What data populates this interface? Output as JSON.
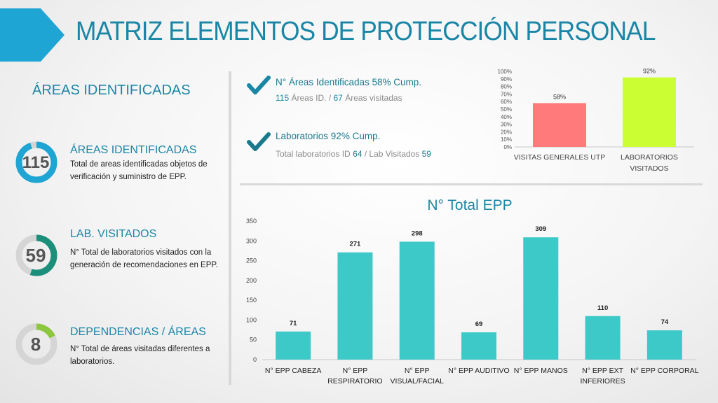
{
  "header": {
    "title": "MATRIZ ELEMENTOS DE PROTECCIÓN PERSONAL"
  },
  "colors": {
    "brand_blue": "#1a86a6",
    "teal": "#3ec9c9",
    "green": "#8dc63f",
    "check": "#1a7a8c",
    "bar_red": "#ff7b7b",
    "bar_lime": "#ccff33"
  },
  "left": {
    "section_title": "ÁREAS IDENTIFICADAS",
    "kpis": [
      {
        "number": "115",
        "title": "ÁREAS IDENTIFICADAS",
        "description": "Total de areas identificadas objetos de verificación y suministro de EPP.",
        "ring_fill": 0.95,
        "ring_color": "#1ea5d4"
      },
      {
        "number": "59",
        "title": "LAB. VISITADOS",
        "description": "N° Total de laboratorios visitados con la generación de recomendaciones en EPP.",
        "ring_fill": 0.55,
        "ring_color": "#1b8f7a"
      },
      {
        "number": "8",
        "title": "DEPENDENCIAS / ÁREAS",
        "description": "N° Total de áreas visitadas diferentes a laboratorios.",
        "ring_fill": 0.18,
        "ring_color": "#8dc63f"
      }
    ]
  },
  "stats": [
    {
      "icon": "checkmark-icon",
      "title": "N° Áreas Identificadas 58% Cump.",
      "sub_parts": [
        "115",
        " Áreas ID. / ",
        "67",
        " Áreas visitadas"
      ]
    },
    {
      "icon": "checkmark-icon",
      "title": "Laboratorios 92% Cump.",
      "sub_parts": [
        "Total laboratorios ID ",
        "64",
        " / Lab Visitados ",
        "59"
      ]
    }
  ],
  "epp_title": "N° Total EPP",
  "chart_data": [
    {
      "type": "bar",
      "categories": [
        [
          "VISITAS GENERALES UTP"
        ],
        [
          "LABORATORIOS",
          "VISITADOS"
        ]
      ],
      "values": [
        58,
        92
      ],
      "data_labels": [
        "58%",
        "92%"
      ],
      "colors": [
        "#ff7b7b",
        "#ccff33"
      ],
      "ylim": [
        0,
        100
      ],
      "yticks": [
        0,
        10,
        20,
        30,
        40,
        50,
        60,
        70,
        80,
        90,
        100
      ],
      "ytick_labels": [
        "0%",
        "10%",
        "20%",
        "30%",
        "40%",
        "50%",
        "60%",
        "70%",
        "80%",
        "90%",
        "100%"
      ],
      "grid": false
    },
    {
      "type": "bar",
      "title": "N° Total EPP",
      "categories": [
        [
          "N° EPP CABEZA"
        ],
        [
          "N° EPP",
          "RESPIRATORIO"
        ],
        [
          "N° EPP",
          "VISUAL/FACIAL"
        ],
        [
          "N° EPP AUDITIVO"
        ],
        [
          "N° EPP MANOS"
        ],
        [
          "N° EPP EXT",
          "INFERIORES"
        ],
        [
          "N° EPP CORPORAL"
        ]
      ],
      "values": [
        71,
        271,
        298,
        69,
        309,
        110,
        74
      ],
      "color": "#3ec9c9",
      "ylim": [
        0,
        350
      ],
      "yticks": [
        0,
        50,
        100,
        150,
        200,
        250,
        300,
        350
      ],
      "grid": false
    }
  ]
}
